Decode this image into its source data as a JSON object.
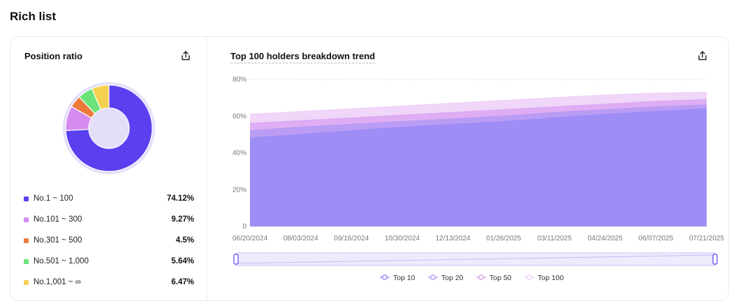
{
  "page": {
    "title": "Rich list"
  },
  "position_ratio": {
    "title": "Position ratio",
    "share_icon": "share-icon",
    "items": [
      {
        "label": "No.1 ~ 100",
        "value": "74.12%",
        "percent": 74.12,
        "color": "#5b40f0"
      },
      {
        "label": "No.101 ~ 300",
        "value": "9.27%",
        "percent": 9.27,
        "color": "#d58bf0"
      },
      {
        "label": "No.301 ~ 500",
        "value": "4.5%",
        "percent": 4.5,
        "color": "#ec7a3c"
      },
      {
        "label": "No.501 ~ 1,000",
        "value": "5.64%",
        "percent": 5.64,
        "color": "#6be37a"
      },
      {
        "label": "No.1,001 ~ ∞",
        "value": "6.47%",
        "percent": 6.47,
        "color": "#f5d151"
      }
    ]
  },
  "trend": {
    "title": "Top 100 holders breakdown trend",
    "share_icon": "share-icon"
  },
  "chart_data": [
    {
      "type": "pie",
      "categories": [
        "No.1 ~ 100",
        "No.101 ~ 300",
        "No.301 ~ 500",
        "No.501 ~ 1,000",
        "No.1,001 ~ ∞"
      ],
      "values": [
        74.12,
        9.27,
        4.5,
        5.64,
        6.47
      ],
      "colors": [
        "#5b40f0",
        "#d58bf0",
        "#ec7a3c",
        "#6be37a",
        "#f5d151"
      ]
    },
    {
      "type": "area",
      "x_ticks": [
        "06/20/2024",
        "08/03/2024",
        "09/16/2024",
        "10/30/2024",
        "12/13/2024",
        "01/26/2025",
        "03/11/2025",
        "04/24/2025",
        "06/07/2025",
        "07/21/2025"
      ],
      "y_ticks": [
        "0",
        "20%",
        "40%",
        "60%",
        "80%"
      ],
      "ylim": [
        0,
        80
      ],
      "grid": true,
      "legend_position": "bottom",
      "series": [
        {
          "name": "Top 10",
          "color": "#9b8cf5",
          "values": [
            48,
            50,
            52,
            54,
            55.5,
            57,
            59,
            61,
            62.5,
            64
          ]
        },
        {
          "name": "Top 20",
          "color": "#b79af5",
          "values": [
            52,
            54,
            55.5,
            57,
            58.5,
            60,
            62,
            63.5,
            65,
            66
          ]
        },
        {
          "name": "Top 50",
          "color": "#dba9f2",
          "values": [
            56,
            57.5,
            59,
            60.5,
            62,
            63.5,
            65,
            66.5,
            68,
            69
          ]
        },
        {
          "name": "Top 100",
          "color": "#eed2f7",
          "values": [
            61,
            62.5,
            64,
            65.5,
            67,
            68.5,
            70,
            71.5,
            72.5,
            73
          ]
        }
      ]
    }
  ]
}
